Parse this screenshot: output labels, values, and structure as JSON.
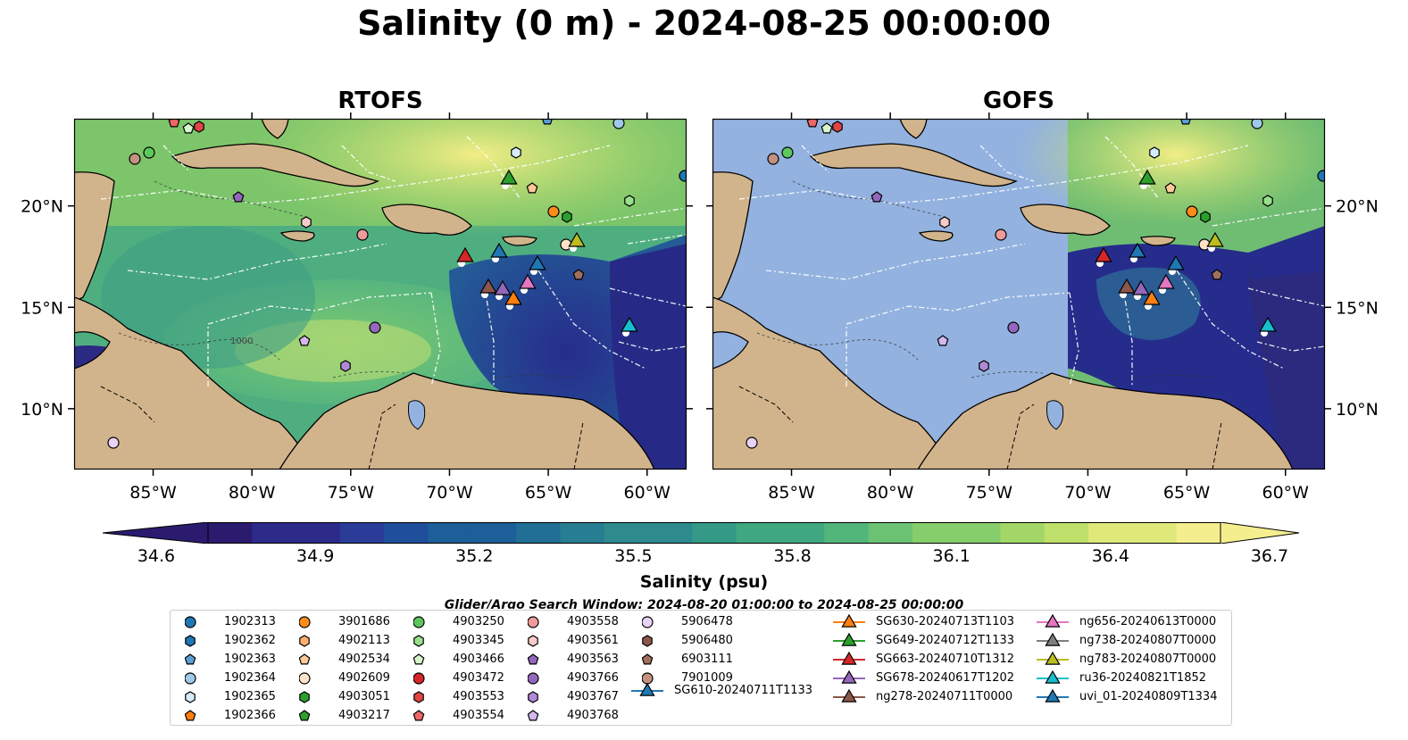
{
  "title": "Salinity (0 m) - 2024-08-25 00:00:00",
  "panels": [
    {
      "id": "rtofs",
      "title": "RTOFS"
    },
    {
      "id": "gofs",
      "title": "GOFS"
    }
  ],
  "map": {
    "lon_range": [
      -89.0,
      -58.0
    ],
    "lat_range": [
      7.0,
      24.3
    ],
    "lon_ticks": [
      "85°W",
      "80°W",
      "75°W",
      "70°W",
      "65°W",
      "60°W"
    ],
    "lat_ticks": [
      "20°N",
      "15°N",
      "10°N"
    ],
    "land_color": "#d2b48c",
    "gofs_nodata_color": "#93b2e0",
    "gofs_data_west_lon": -71.0,
    "contour_label": "1000"
  },
  "colorbar": {
    "label": "Salinity (psu)",
    "ticks": [
      "34.6",
      "34.9",
      "35.2",
      "35.5",
      "35.8",
      "36.1",
      "36.4",
      "36.7"
    ],
    "min": 34.6,
    "max": 36.7,
    "extend": "both"
  },
  "search_window": "Glider/Argo Search Window: 2024-08-20 01:00:00 to 2024-08-25 00:00:00",
  "legend": {
    "argo": [
      {
        "label": "1902313",
        "marker": "circle",
        "color": "#1f77b4"
      },
      {
        "label": "1902362",
        "marker": "hexagon",
        "color": "#1f77b4"
      },
      {
        "label": "1902363",
        "marker": "pentagon",
        "color": "#5aa0d8"
      },
      {
        "label": "1902364",
        "marker": "circle",
        "color": "#9ecae9"
      },
      {
        "label": "1902365",
        "marker": "hexagon",
        "color": "#d6ecfa"
      },
      {
        "label": "1902366",
        "marker": "pentagon",
        "color": "#ff7f0e"
      },
      {
        "label": "3901686",
        "marker": "circle",
        "color": "#ff8c1a"
      },
      {
        "label": "4902113",
        "marker": "hexagon",
        "color": "#ffb070"
      },
      {
        "label": "4902534",
        "marker": "pentagon",
        "color": "#ffc999"
      },
      {
        "label": "4902609",
        "marker": "circle",
        "color": "#ffe3c9"
      },
      {
        "label": "4903051",
        "marker": "hexagon",
        "color": "#2ca02c"
      },
      {
        "label": "4903217",
        "marker": "pentagon",
        "color": "#2ca02c"
      },
      {
        "label": "4903250",
        "marker": "circle",
        "color": "#5cc85c"
      },
      {
        "label": "4903345",
        "marker": "hexagon",
        "color": "#98df8a"
      },
      {
        "label": "4903466",
        "marker": "pentagon",
        "color": "#d5f5cc"
      },
      {
        "label": "4903472",
        "marker": "circle",
        "color": "#d62728"
      },
      {
        "label": "4903553",
        "marker": "hexagon",
        "color": "#e04444"
      },
      {
        "label": "4903554",
        "marker": "pentagon",
        "color": "#ee6666"
      },
      {
        "label": "4903558",
        "marker": "circle",
        "color": "#f09a9a"
      },
      {
        "label": "4903561",
        "marker": "hexagon",
        "color": "#fbcaca"
      },
      {
        "label": "4903563",
        "marker": "pentagon",
        "color": "#9467bd"
      },
      {
        "label": "4903766",
        "marker": "circle",
        "color": "#9467bd"
      },
      {
        "label": "4903767",
        "marker": "hexagon",
        "color": "#b08ad6"
      },
      {
        "label": "4903768",
        "marker": "pentagon",
        "color": "#d3b8ee"
      },
      {
        "label": "5906478",
        "marker": "circle",
        "color": "#e8d2f6"
      },
      {
        "label": "5906480",
        "marker": "hexagon",
        "color": "#8c564b"
      },
      {
        "label": "6903111",
        "marker": "pentagon",
        "color": "#a0705e"
      },
      {
        "label": "7901009",
        "marker": "circle",
        "color": "#c49080"
      }
    ],
    "gliders": [
      {
        "label": "SG610-20240711T1133",
        "color": "#1f77b4"
      },
      {
        "label": "SG630-20240713T1103",
        "color": "#ff7f0e"
      },
      {
        "label": "SG649-20240712T1133",
        "color": "#2ca02c"
      },
      {
        "label": "SG663-20240710T1312",
        "color": "#d62728"
      },
      {
        "label": "SG678-20240617T1202",
        "color": "#9467bd"
      },
      {
        "label": "ng278-20240711T0000",
        "color": "#8c564b"
      },
      {
        "label": "ng656-20240613T0000",
        "color": "#e377c2"
      },
      {
        "label": "ng738-20240807T0000",
        "color": "#7f7f7f"
      },
      {
        "label": "ng783-20240807T0000",
        "color": "#bcbd22"
      },
      {
        "label": "ru36-20240821T1852",
        "color": "#17becf"
      },
      {
        "label": "uvi_01-20240809T1334",
        "color": "#1f77b4"
      }
    ]
  }
}
